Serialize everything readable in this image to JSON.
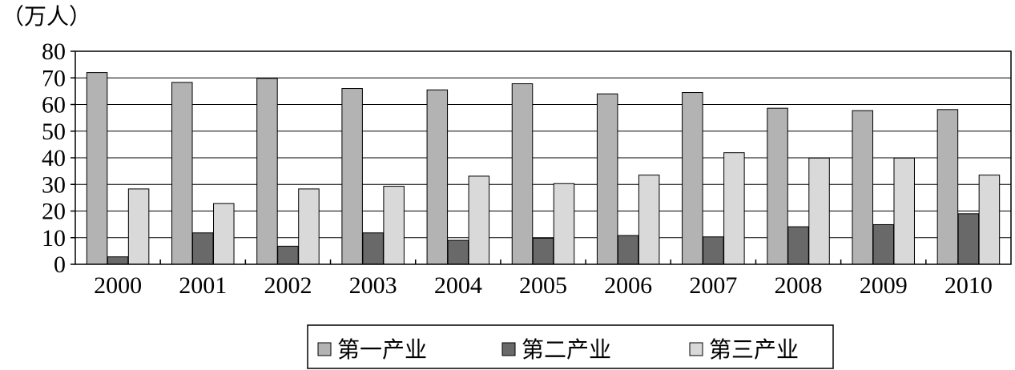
{
  "chart_data": {
    "type": "bar",
    "ylabel": "（万人）",
    "ylim": [
      0,
      80
    ],
    "yticks": [
      "0",
      "10",
      "20",
      "30",
      "40",
      "50",
      "60",
      "70",
      "80"
    ],
    "categories": [
      "2000",
      "2001",
      "2002",
      "2003",
      "2004",
      "2005",
      "2006",
      "2007",
      "2008",
      "2009",
      "2010"
    ],
    "series": [
      {
        "name": "第一产业",
        "color": "#b3b3b3",
        "values": [
          72,
          68.3,
          69.8,
          66,
          65.5,
          67.8,
          64,
          64.5,
          58.6,
          57.7,
          58.1
        ]
      },
      {
        "name": "第二产业",
        "color": "#696969",
        "values": [
          2.8,
          11.8,
          6.8,
          11.8,
          9,
          9.8,
          10.8,
          10.3,
          14.1,
          14.9,
          19
        ]
      },
      {
        "name": "第三产业",
        "color": "#d9d9d9",
        "values": [
          28.3,
          22.8,
          28.3,
          29.3,
          33.1,
          30.3,
          33.5,
          41.9,
          39.9,
          39.9,
          33.5
        ]
      }
    ],
    "grid": true,
    "legend_position": "bottom"
  }
}
